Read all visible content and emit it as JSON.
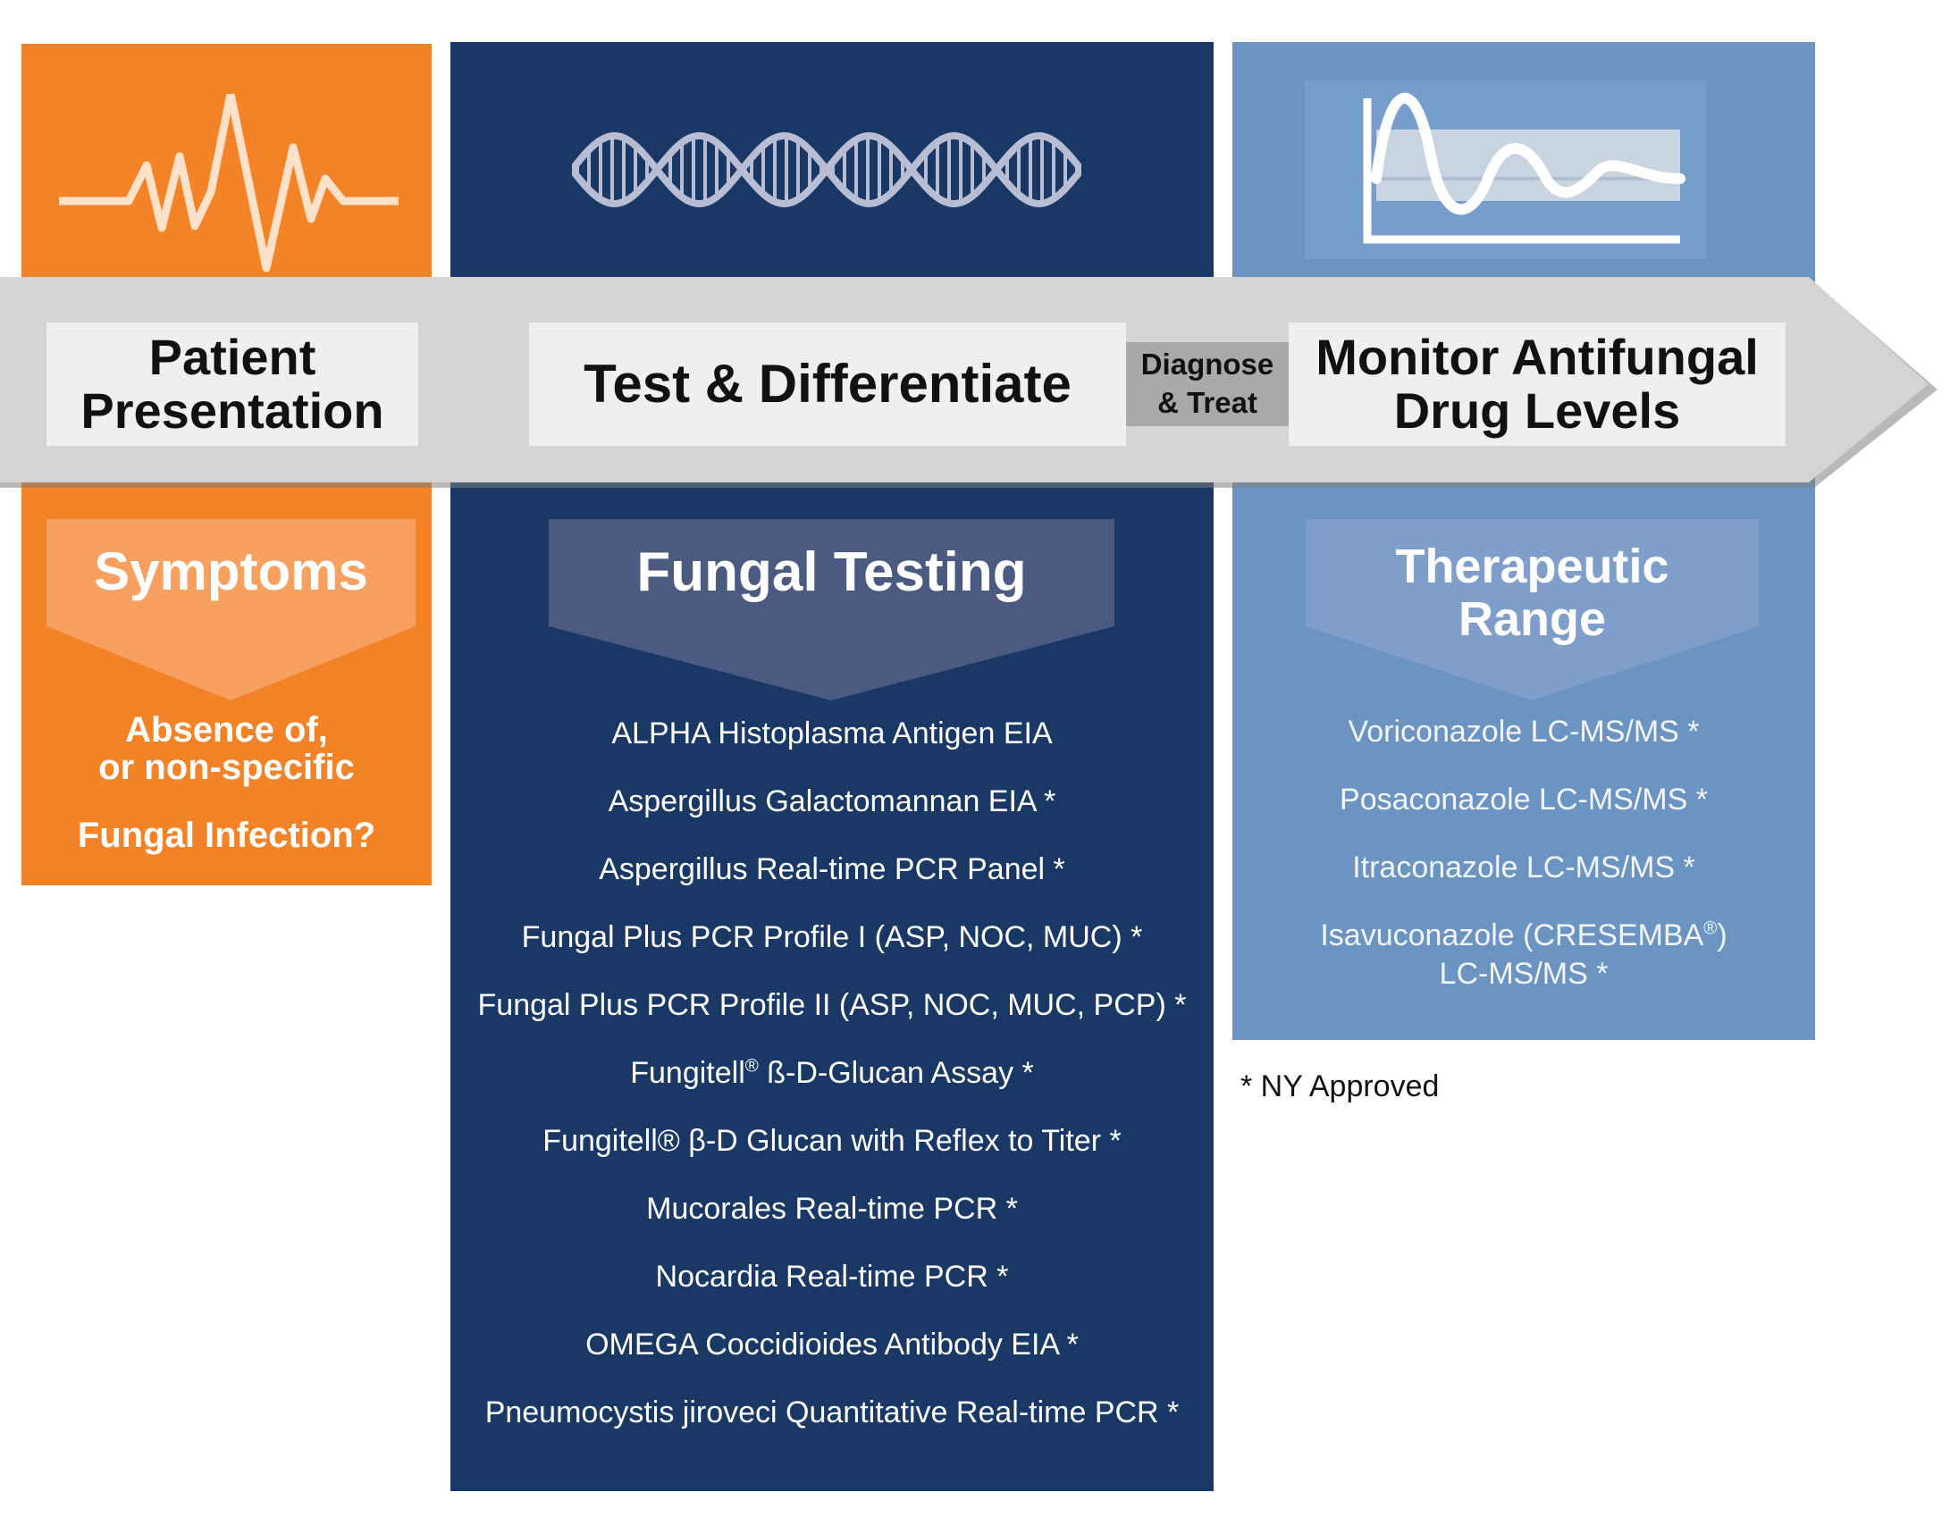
{
  "colors": {
    "orange": "#f48226",
    "navy": "#193865",
    "steel_blue": "#6c94c3",
    "banner_gray": "#d6d3d3",
    "box_gray": "#efefef",
    "diagnose_gray": "#a9a9a9"
  },
  "icons": {
    "patient": "heartbeat-icon",
    "test": "dna-icon",
    "monitor": "drug-level-chart-icon"
  },
  "stages": {
    "patient_line1": "Patient",
    "patient_line2": "Presentation",
    "test": "Test & Differentiate",
    "diagnose_line1": "Diagnose",
    "diagnose_line2": "& Treat",
    "monitor_line1": "Monitor Antifungal",
    "monitor_line2": "Drug Levels"
  },
  "symptoms": {
    "title": "Symptoms",
    "line1": "Absence of,",
    "line2": "or non-specific",
    "line3": "Fungal Infection?"
  },
  "fungal_testing": {
    "title": "Fungal Testing",
    "items": [
      "ALPHA Histoplasma Antigen EIA",
      "Aspergillus Galactomannan EIA *",
      "Aspergillus Real-time PCR Panel *",
      "Fungal Plus PCR Profile I (ASP, NOC, MUC) *",
      "Fungal Plus PCR Profile II (ASP, NOC, MUC, PCP) *",
      "Fungitell",
      "ß-D-Glucan Assay *",
      "Fungitell® β-D Glucan with Reflex to Titer *",
      "Mucorales Real-time PCR *",
      "Nocardia Real-time PCR *",
      "OMEGA Coccidioides Antibody EIA *",
      "Pneumocystis jiroveci Quantitative Real-time PCR *"
    ],
    "registered": "®"
  },
  "therapeutic_range": {
    "title_line1": "Therapeutic",
    "title_line2": "Range",
    "items": [
      "Voriconazole LC-MS/MS *",
      "Posaconazole LC-MS/MS *",
      "Itraconazole LC-MS/MS *",
      "Isavuconazole (CRESEMBA",
      ")",
      "LC-MS/MS *"
    ],
    "registered": "®"
  },
  "footnote": "* NY Approved"
}
